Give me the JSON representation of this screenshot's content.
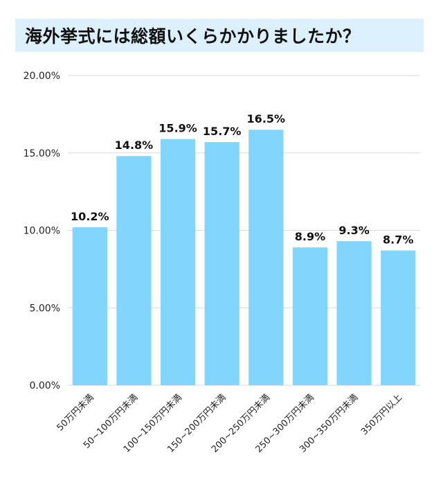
{
  "chart_data": {
    "type": "bar",
    "title": "海外挙式には総額いくらかかりましたか？",
    "categories": [
      "50万円未満",
      "50~100万円未満",
      "100~150万円未満",
      "150~200万円未満",
      "200~250万円未満",
      "250~300万円未満",
      "300~350万円未満",
      "350万円以上"
    ],
    "values": [
      10.2,
      14.8,
      15.9,
      15.7,
      16.5,
      8.9,
      9.3,
      8.7
    ],
    "data_labels": [
      "10.2%",
      "14.8%",
      "15.9%",
      "15.7%",
      "16.5%",
      "8.9%",
      "9.3%",
      "8.7%"
    ],
    "yticks": [
      0,
      5,
      10,
      15,
      20
    ],
    "ytick_labels": [
      "0.00%",
      "5.00%",
      "10.00%",
      "15.00%",
      "20.00%"
    ],
    "ylim": [
      0,
      20
    ],
    "grid": true,
    "xlabel": "",
    "ylabel": "",
    "colors": {
      "bar": "#80d6ff",
      "title_background": "#dcf0fb",
      "grid": "#d9d9d9"
    }
  }
}
